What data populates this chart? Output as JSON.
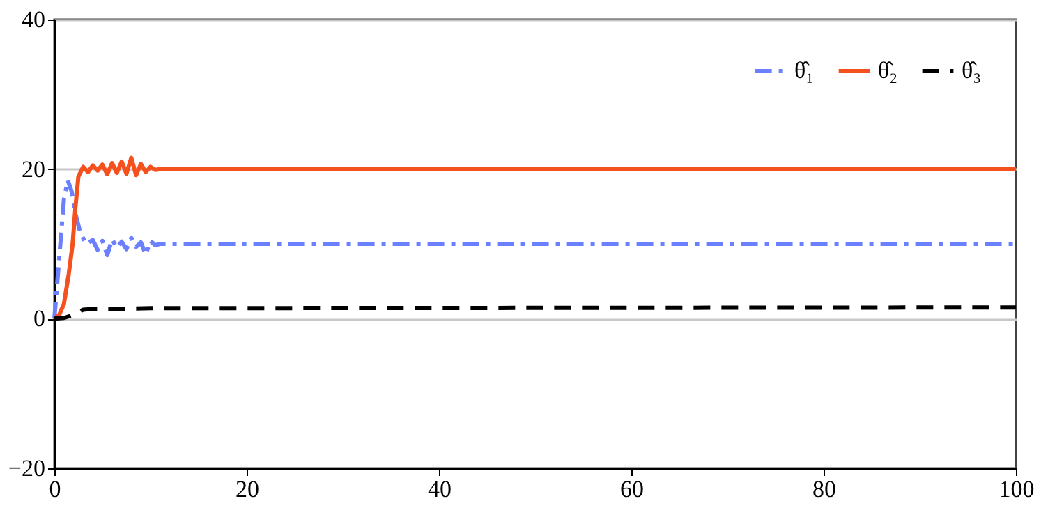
{
  "chart_data": {
    "type": "line",
    "xlim": [
      0,
      100
    ],
    "xticks": [
      0,
      20,
      40,
      60,
      80,
      100
    ],
    "ylim": [
      -20,
      40
    ],
    "yticks": [
      -20,
      0,
      20,
      40
    ],
    "grid": "y",
    "legend": "top right",
    "series": [
      {
        "name": "θ̂₁",
        "color": "#6b80ff",
        "line_style": "dashdot",
        "x": [
          0,
          0.5,
          1,
          1.4,
          1.8,
          2.2,
          2.7,
          3.3,
          4,
          4.5,
          5,
          5.5,
          6,
          6.5,
          7,
          7.5,
          8,
          8.5,
          9,
          9.5,
          10,
          10.5,
          11,
          100
        ],
        "values": [
          0,
          8,
          16,
          18.5,
          17,
          14,
          11.5,
          10,
          10.5,
          9.2,
          10.4,
          8.5,
          10.6,
          9.5,
          10.3,
          9.3,
          10.8,
          9.6,
          10.2,
          8.6,
          10.4,
          9.8,
          10,
          10
        ]
      },
      {
        "name": "θ̂₂",
        "color": "#f4511e",
        "line_style": "solid",
        "x": [
          0,
          0.5,
          1,
          1.5,
          1.9,
          2.2,
          2.5,
          3,
          3.5,
          4,
          4.5,
          5,
          5.5,
          6,
          6.5,
          7,
          7.5,
          8,
          8.5,
          9,
          9.5,
          10,
          10.5,
          11,
          100
        ],
        "values": [
          0,
          0.5,
          2,
          6,
          10,
          15,
          19,
          20.3,
          19.6,
          20.5,
          19.8,
          20.6,
          19.3,
          20.8,
          19.5,
          21,
          19.4,
          21.5,
          19.2,
          20.7,
          19.6,
          20.3,
          19.9,
          20,
          20
        ]
      },
      {
        "name": "θ̂₃",
        "color": "#000000",
        "line_style": "dashed",
        "x": [
          0,
          1,
          2,
          3,
          4,
          6,
          10,
          100
        ],
        "values": [
          0,
          0.1,
          0.5,
          1.2,
          1.3,
          1.3,
          1.4,
          1.5
        ]
      }
    ]
  }
}
